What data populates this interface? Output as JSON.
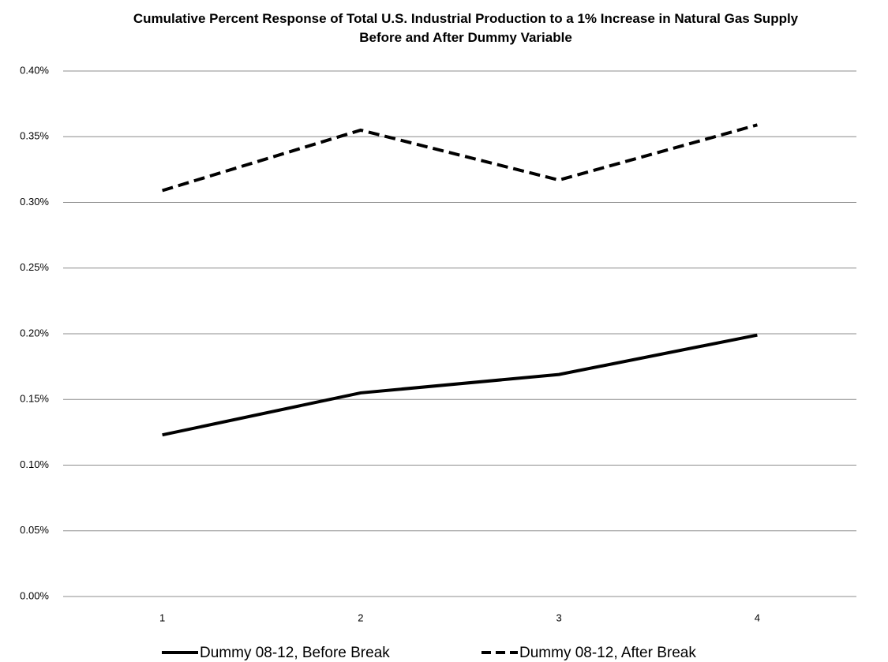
{
  "chart_data": {
    "type": "line",
    "title": "Cumulative Percent Response of Total U.S. Industrial Production to a 1% Increase in Natural Gas Supply Before and After Dummy Variable",
    "categories": [
      "1",
      "2",
      "3",
      "4"
    ],
    "series": [
      {
        "name": "Dummy 08-12, Before Break",
        "color": "#000000",
        "dash": "solid",
        "values": [
          0.123,
          0.155,
          0.169,
          0.199
        ]
      },
      {
        "name": "Dummy 08-12, After Break",
        "color": "#000000",
        "dash": "dashed",
        "values": [
          0.309,
          0.355,
          0.317,
          0.359
        ]
      }
    ],
    "ylim": [
      0,
      0.4
    ],
    "yticks": [
      {
        "value": 0,
        "label": "0.00%"
      },
      {
        "value": 0.05,
        "label": "0.05%"
      },
      {
        "value": 0.1,
        "label": "0.10%"
      },
      {
        "value": 0.15,
        "label": "0.15%"
      },
      {
        "value": 0.2,
        "label": "0.20%"
      },
      {
        "value": 0.25,
        "label": "0.25%"
      },
      {
        "value": 0.3,
        "label": "0.30%"
      },
      {
        "value": 0.35,
        "label": "0.35%"
      },
      {
        "value": 0.4,
        "label": "0.40%"
      }
    ],
    "grid": true,
    "legend": "bottom"
  }
}
